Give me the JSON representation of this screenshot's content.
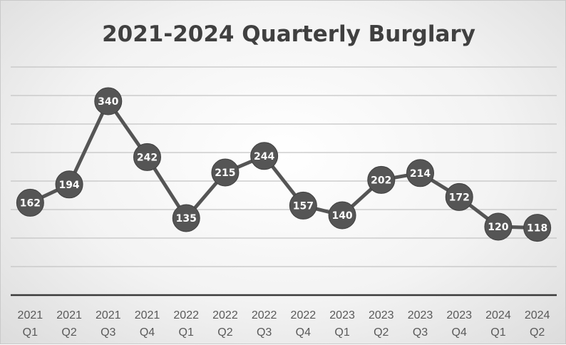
{
  "chart_data": {
    "type": "line",
    "title": "2021-2024 Quarterly Burglary",
    "categories": [
      [
        "2021",
        "Q1"
      ],
      [
        "2021",
        "Q2"
      ],
      [
        "2021",
        "Q3"
      ],
      [
        "2021",
        "Q4"
      ],
      [
        "2022",
        "Q1"
      ],
      [
        "2022",
        "Q2"
      ],
      [
        "2022",
        "Q3"
      ],
      [
        "2022",
        "Q4"
      ],
      [
        "2023",
        "Q1"
      ],
      [
        "2023",
        "Q2"
      ],
      [
        "2023",
        "Q3"
      ],
      [
        "2023",
        "Q4"
      ],
      [
        "2024",
        "Q1"
      ],
      [
        "2024",
        "Q2"
      ]
    ],
    "values": [
      162,
      194,
      340,
      242,
      135,
      215,
      244,
      157,
      140,
      202,
      214,
      172,
      120,
      118
    ],
    "ylim": [
      0,
      400
    ],
    "grid": true,
    "data_labels": true,
    "legend": "none",
    "colors": {
      "line": "#555555",
      "marker": "#555555",
      "label": "#ffffff",
      "title": "#404040",
      "tick": "#595959",
      "grid": "#c4c4c4"
    }
  }
}
